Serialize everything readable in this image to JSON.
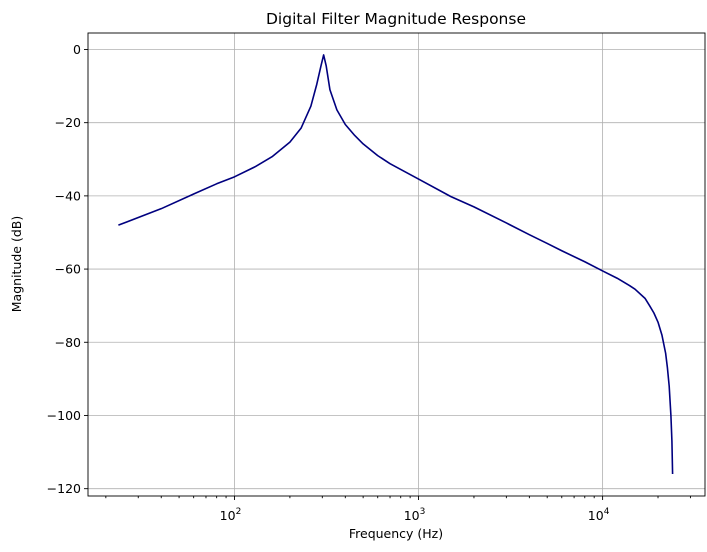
{
  "chart_data": {
    "type": "line",
    "title": "Digital Filter Magnitude Response",
    "xlabel": "Frequency (Hz)",
    "ylabel": "Magnitude (dB)",
    "xscale": "log",
    "xlim": [
      16,
      36000
    ],
    "ylim": [
      -122,
      4.5
    ],
    "grid": true,
    "x_ticks": [
      {
        "base": "10",
        "exp": "2",
        "value": 100
      },
      {
        "base": "10",
        "exp": "3",
        "value": 1000
      },
      {
        "base": "10",
        "exp": "4",
        "value": 10000
      }
    ],
    "y_ticks": [
      {
        "label": "0",
        "value": 0
      },
      {
        "label": "−20",
        "value": -20
      },
      {
        "label": "−40",
        "value": -40
      },
      {
        "label": "−60",
        "value": -60
      },
      {
        "label": "−80",
        "value": -80
      },
      {
        "label": "−100",
        "value": -100
      },
      {
        "label": "−120",
        "value": -120
      }
    ],
    "series": [
      {
        "color": "#00007f",
        "x": [
          23.4,
          40,
          60,
          80,
          100,
          130,
          160,
          200,
          230,
          260,
          280,
          295,
          305,
          315,
          330,
          360,
          400,
          450,
          500,
          600,
          700,
          850,
          1000,
          1500,
          2000,
          3000,
          4000,
          5000,
          6000,
          8000,
          10000,
          12000,
          14000,
          15000,
          17000,
          18000,
          19000,
          20000,
          21000,
          22000,
          22500,
          23000,
          23500,
          23800,
          24000
        ],
        "y": [
          -48,
          -43.5,
          -39.5,
          -36.7,
          -34.8,
          -32,
          -29.3,
          -25.3,
          -21.5,
          -15.5,
          -9.5,
          -4.5,
          -1.5,
          -4.5,
          -11,
          -16.5,
          -20.5,
          -23.5,
          -25.8,
          -29,
          -31.2,
          -33.5,
          -35.4,
          -40.2,
          -43,
          -47.4,
          -50.6,
          -53,
          -55,
          -58,
          -60.5,
          -62.5,
          -64.5,
          -65.5,
          -68,
          -70,
          -72,
          -74.5,
          -78,
          -83,
          -87,
          -92,
          -100,
          -107,
          -116
        ]
      }
    ]
  }
}
